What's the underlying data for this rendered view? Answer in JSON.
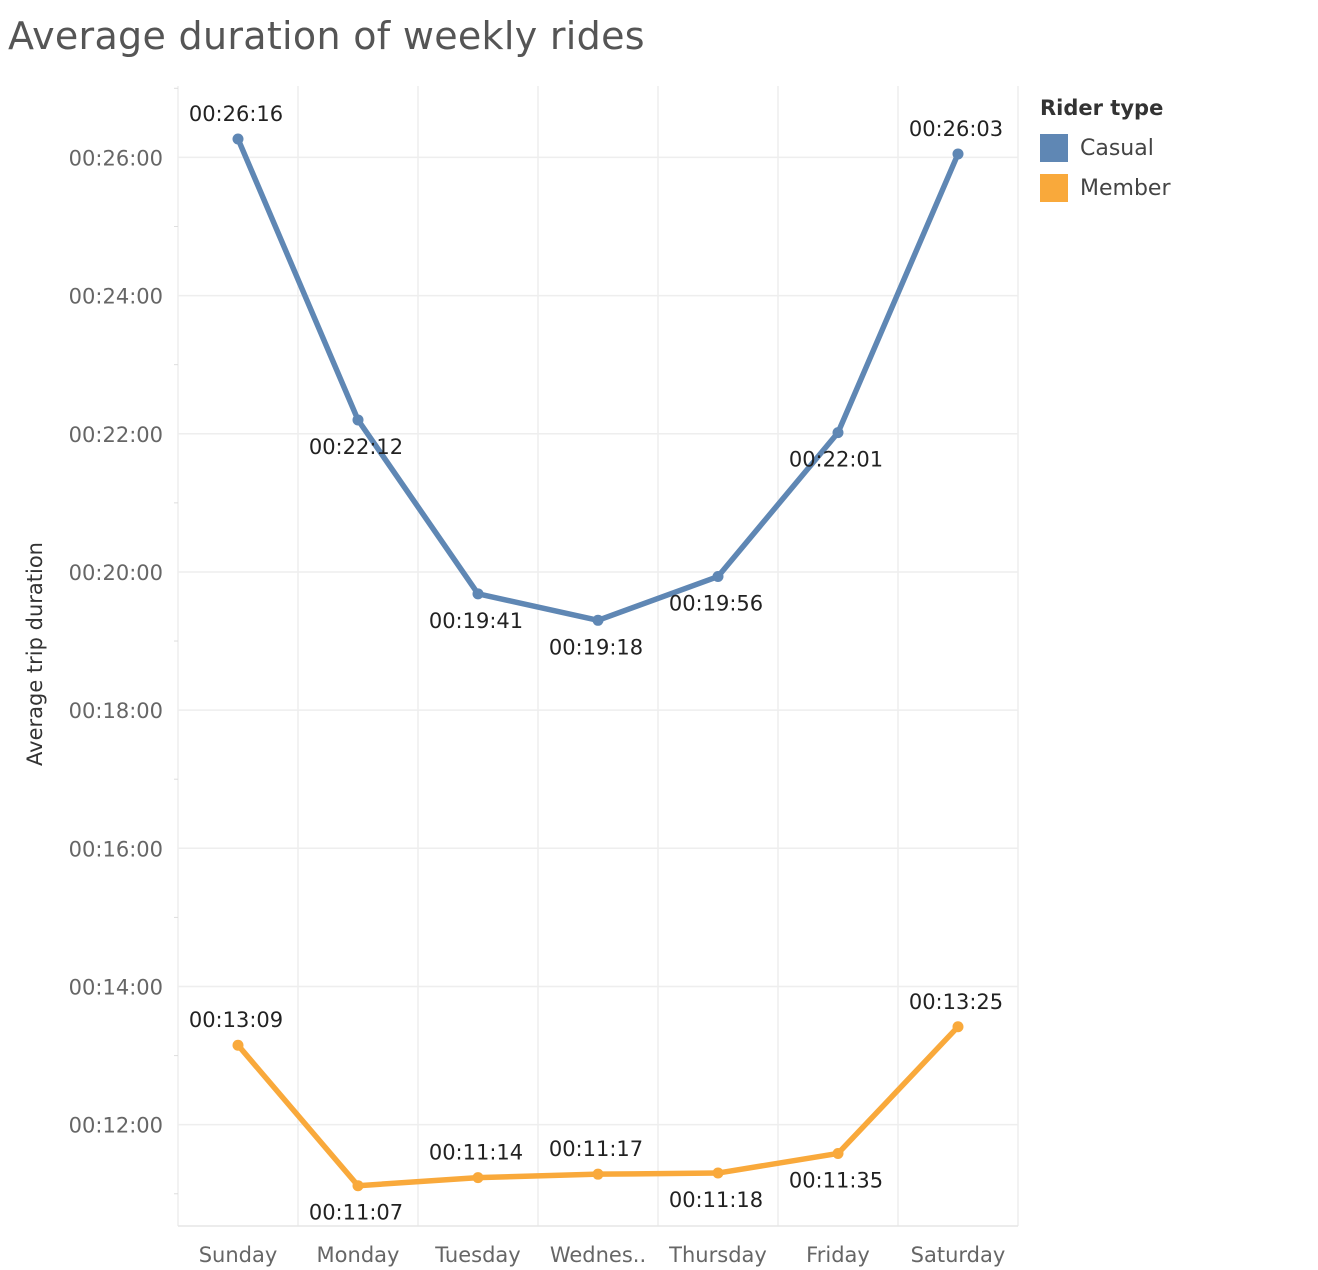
{
  "chart_data": {
    "type": "line",
    "title": "Average duration of weekly rides",
    "ylabel": "Average trip duration",
    "xlabel": "",
    "categories": [
      "Sunday",
      "Monday",
      "Tuesday",
      "Wednes..",
      "Thursday",
      "Friday",
      "Saturday"
    ],
    "y_ticks": [
      "00:12:00",
      "00:14:00",
      "00:16:00",
      "00:18:00",
      "00:20:00",
      "00:22:00",
      "00:24:00",
      "00:26:00"
    ],
    "y_tick_seconds": [
      720,
      840,
      960,
      1080,
      1200,
      1320,
      1440,
      1560
    ],
    "ylim_seconds": [
      632,
      1622
    ],
    "grid": true,
    "legend": {
      "title": "Rider type",
      "position": "top-right"
    },
    "series": [
      {
        "name": "Casual",
        "color": "#5f87b4",
        "values_seconds": [
          1576,
          1332,
          1181,
          1158,
          1196,
          1321,
          1563
        ],
        "labels": [
          "00:26:16",
          "00:22:12",
          "00:19:41",
          "00:19:18",
          "00:19:56",
          "00:22:01",
          "00:26:03"
        ],
        "label_positions": [
          "above",
          "below",
          "below",
          "below",
          "below",
          "below",
          "above"
        ]
      },
      {
        "name": "Member",
        "color": "#f9a93b",
        "values_seconds": [
          789,
          667,
          674,
          677,
          678,
          695,
          805
        ],
        "labels": [
          "00:13:09",
          "00:11:07",
          "00:11:14",
          "00:11:17",
          "00:11:18",
          "00:11:35",
          "00:13:25"
        ],
        "label_positions": [
          "above",
          "below",
          "above",
          "above",
          "below",
          "below",
          "above"
        ]
      }
    ]
  }
}
